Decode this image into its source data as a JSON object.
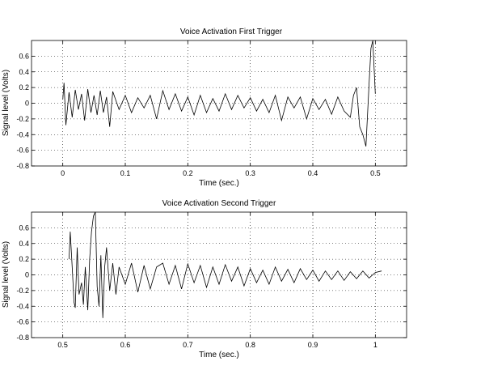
{
  "chart_data": [
    {
      "type": "line",
      "title": "Voice Activation First Trigger",
      "xlabel": "Time (sec.)",
      "ylabel": "Signal level (Volts)",
      "xlim": [
        -0.05,
        0.55
      ],
      "ylim": [
        -0.8,
        0.8
      ],
      "x_ticks": [
        0,
        0.1,
        0.2,
        0.3,
        0.4,
        0.5
      ],
      "x_tick_labels": [
        "0",
        "0.1",
        "0.2",
        "0.3",
        "0.4",
        "0.5"
      ],
      "y_ticks": [
        -0.8,
        -0.6,
        -0.4,
        -0.2,
        0,
        0.2,
        0.4,
        0.6
      ],
      "y_tick_labels": [
        "-0.8",
        "-0.6",
        "-0.4",
        "-0.2",
        "0",
        "0.2",
        "0.4",
        "0.6"
      ],
      "grid": true,
      "series": [
        {
          "x": [
            0,
            0.002,
            0.005,
            0.01,
            0.015,
            0.02,
            0.025,
            0.03,
            0.035,
            0.04,
            0.045,
            0.05,
            0.055,
            0.06,
            0.065,
            0.07,
            0.075,
            0.08,
            0.09,
            0.1,
            0.11,
            0.12,
            0.13,
            0.14,
            0.15,
            0.16,
            0.17,
            0.18,
            0.19,
            0.2,
            0.21,
            0.22,
            0.23,
            0.24,
            0.25,
            0.26,
            0.27,
            0.28,
            0.29,
            0.3,
            0.31,
            0.32,
            0.33,
            0.34,
            0.35,
            0.36,
            0.37,
            0.38,
            0.39,
            0.4,
            0.41,
            0.42,
            0.43,
            0.44,
            0.45,
            0.46,
            0.465,
            0.47,
            0.475,
            0.48,
            0.485,
            0.49,
            0.493,
            0.496,
            0.5
          ],
          "y": [
            0.05,
            0.26,
            -0.28,
            0.14,
            -0.18,
            0.17,
            -0.08,
            0.12,
            -0.22,
            0.18,
            -0.12,
            0.1,
            -0.15,
            0.16,
            -0.12,
            0.08,
            -0.3,
            0.15,
            -0.08,
            0.1,
            -0.12,
            0.07,
            -0.06,
            0.1,
            -0.2,
            0.16,
            -0.08,
            0.12,
            -0.1,
            0.08,
            -0.15,
            0.1,
            -0.12,
            0.06,
            -0.1,
            0.12,
            -0.08,
            0.1,
            -0.06,
            0.07,
            -0.1,
            0.05,
            -0.12,
            0.1,
            -0.22,
            0.08,
            -0.06,
            0.08,
            -0.2,
            0.06,
            -0.08,
            0.05,
            -0.14,
            0.08,
            -0.1,
            -0.18,
            0.1,
            0.2,
            -0.3,
            -0.4,
            -0.55,
            0.25,
            0.7,
            0.8,
            0.12
          ]
        }
      ]
    },
    {
      "type": "line",
      "title": "Voice Activation Second Trigger",
      "xlabel": "Time (sec.)",
      "ylabel": "Signal level (Volts)",
      "xlim": [
        0.45,
        1.05
      ],
      "ylim": [
        -0.8,
        0.8
      ],
      "x_ticks": [
        0.5,
        0.6,
        0.7,
        0.8,
        0.9,
        1
      ],
      "x_tick_labels": [
        "0.5",
        "0.6",
        "0.7",
        "0.8",
        "0.9",
        "1"
      ],
      "y_ticks": [
        -0.8,
        -0.6,
        -0.4,
        -0.2,
        0,
        0.2,
        0.4,
        0.6
      ],
      "y_tick_labels": [
        "-0.8",
        "-0.6",
        "-0.4",
        "-0.2",
        "0",
        "0.2",
        "0.4",
        "0.6"
      ],
      "grid": true,
      "series": [
        {
          "x": [
            0.51,
            0.512,
            0.515,
            0.518,
            0.52,
            0.523,
            0.526,
            0.53,
            0.533,
            0.536,
            0.54,
            0.543,
            0.546,
            0.549,
            0.552,
            0.555,
            0.558,
            0.561,
            0.564,
            0.567,
            0.57,
            0.575,
            0.58,
            0.585,
            0.59,
            0.6,
            0.61,
            0.62,
            0.63,
            0.64,
            0.65,
            0.66,
            0.67,
            0.68,
            0.69,
            0.7,
            0.71,
            0.72,
            0.73,
            0.74,
            0.75,
            0.76,
            0.77,
            0.78,
            0.79,
            0.8,
            0.81,
            0.82,
            0.83,
            0.84,
            0.85,
            0.86,
            0.87,
            0.88,
            0.89,
            0.9,
            0.91,
            0.92,
            0.93,
            0.94,
            0.95,
            0.96,
            0.97,
            0.98,
            0.99,
            1.0,
            1.01
          ],
          "y": [
            0.2,
            0.55,
            0.1,
            -0.35,
            -0.42,
            0.35,
            -0.25,
            -0.1,
            -0.38,
            0.1,
            -0.45,
            0.2,
            0.55,
            0.75,
            0.8,
            -0.15,
            -0.4,
            0.25,
            -0.55,
            0.1,
            0.35,
            -0.2,
            0.15,
            -0.25,
            0.1,
            -0.12,
            0.15,
            -0.22,
            0.12,
            -0.18,
            0.1,
            0.15,
            -0.12,
            0.12,
            -0.18,
            0.14,
            -0.1,
            0.12,
            -0.16,
            0.1,
            -0.12,
            0.13,
            -0.08,
            0.1,
            -0.14,
            0.08,
            -0.1,
            0.06,
            -0.12,
            0.1,
            -0.08,
            0.07,
            -0.1,
            0.08,
            -0.06,
            0.06,
            -0.08,
            0.05,
            -0.06,
            0.05,
            -0.07,
            0.04,
            -0.05,
            0.05,
            -0.04,
            0.03,
            0.05
          ]
        }
      ]
    }
  ]
}
